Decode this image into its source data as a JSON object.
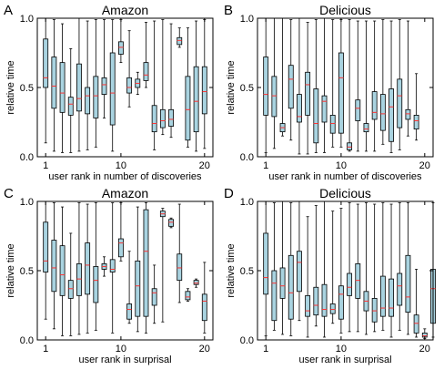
{
  "figure": {
    "style": {
      "box_fill": "#a9d3e0",
      "box_stroke": "#000000",
      "median_color": "#ff3333",
      "whisker_color": "#000000"
    }
  },
  "chart_data": [
    {
      "type": "box",
      "panel_letter": "A",
      "title": "Amazon",
      "xlabel": "user rank in number of discoveries",
      "ylabel": "relative time",
      "xlim": [
        0,
        21
      ],
      "ylim": [
        0.0,
        1.0
      ],
      "xticks": [
        "1",
        "10",
        "20"
      ],
      "xtick_positions": [
        1,
        10,
        20
      ],
      "yticks": [
        "0.0",
        "0.5",
        "1.0"
      ],
      "boxes": [
        {
          "x": 1,
          "min": 0.1,
          "q1": 0.5,
          "median": 0.57,
          "q3": 0.85,
          "max": 1.0
        },
        {
          "x": 2,
          "min": 0.04,
          "q1": 0.35,
          "median": 0.51,
          "q3": 0.72,
          "max": 0.99
        },
        {
          "x": 3,
          "min": 0.03,
          "q1": 0.32,
          "median": 0.46,
          "q3": 0.68,
          "max": 0.96
        },
        {
          "x": 4,
          "min": 0.03,
          "q1": 0.3,
          "median": 0.38,
          "q3": 0.43,
          "max": 0.78
        },
        {
          "x": 5,
          "min": 0.04,
          "q1": 0.33,
          "median": 0.42,
          "q3": 0.67,
          "max": 1.0
        },
        {
          "x": 6,
          "min": 0.05,
          "q1": 0.31,
          "median": 0.44,
          "q3": 0.5,
          "max": 0.98
        },
        {
          "x": 7,
          "min": 0.07,
          "q1": 0.28,
          "median": 0.44,
          "q3": 0.58,
          "max": 0.99
        },
        {
          "x": 8,
          "min": 0.28,
          "q1": 0.45,
          "median": 0.52,
          "q3": 0.57,
          "max": 0.99
        },
        {
          "x": 9,
          "min": 0.04,
          "q1": 0.23,
          "median": 0.46,
          "q3": 0.75,
          "max": 0.99
        },
        {
          "x": 10,
          "min": 0.68,
          "q1": 0.74,
          "median": 0.79,
          "q3": 0.83,
          "max": 0.99
        },
        {
          "x": 11,
          "min": 0.36,
          "q1": 0.46,
          "median": 0.5,
          "q3": 0.57,
          "max": 0.91
        },
        {
          "x": 12,
          "min": 0.45,
          "q1": 0.5,
          "median": 0.53,
          "q3": 0.56,
          "max": 0.61
        },
        {
          "x": 13,
          "min": 0.5,
          "q1": 0.55,
          "median": 0.59,
          "q3": 0.68,
          "max": 0.97
        },
        {
          "x": 14,
          "min": 0.05,
          "q1": 0.18,
          "median": 0.24,
          "q3": 0.37,
          "max": 0.98
        },
        {
          "x": 15,
          "min": 0.16,
          "q1": 0.21,
          "median": 0.26,
          "q3": 0.34,
          "max": 0.99
        },
        {
          "x": 16,
          "min": 0.14,
          "q1": 0.22,
          "median": 0.27,
          "q3": 0.34,
          "max": 0.96
        },
        {
          "x": 17,
          "min": 0.79,
          "q1": 0.81,
          "median": 0.84,
          "q3": 0.86,
          "max": 0.93
        },
        {
          "x": 18,
          "min": 0.07,
          "q1": 0.12,
          "median": 0.34,
          "q3": 0.58,
          "max": 0.93
        },
        {
          "x": 19,
          "min": 0.04,
          "q1": 0.18,
          "median": 0.4,
          "q3": 0.65,
          "max": 0.98
        },
        {
          "x": 20,
          "min": 0.06,
          "q1": 0.31,
          "median": 0.47,
          "q3": 0.65,
          "max": 0.99
        }
      ]
    },
    {
      "type": "box",
      "panel_letter": "B",
      "title": "Delicious",
      "xlabel": "user rank in number of discoveries",
      "ylabel": "relative time",
      "xlim": [
        0,
        21
      ],
      "ylim": [
        0.0,
        1.0
      ],
      "xticks": [
        "1",
        "10",
        "20"
      ],
      "xtick_positions": [
        1,
        10,
        20
      ],
      "yticks": [
        "0.0",
        "0.5",
        "1.0"
      ],
      "boxes": [
        {
          "x": 1,
          "min": 0.03,
          "q1": 0.3,
          "median": 0.45,
          "q3": 0.72,
          "max": 1.0
        },
        {
          "x": 2,
          "min": 0.06,
          "q1": 0.29,
          "median": 0.44,
          "q3": 0.58,
          "max": 1.0
        },
        {
          "x": 3,
          "min": 0.15,
          "q1": 0.18,
          "median": 0.21,
          "q3": 0.24,
          "max": 1.0
        },
        {
          "x": 4,
          "min": 0.12,
          "q1": 0.35,
          "median": 0.56,
          "q3": 0.66,
          "max": 0.99
        },
        {
          "x": 5,
          "min": 0.02,
          "q1": 0.25,
          "median": 0.29,
          "q3": 0.45,
          "max": 1.0
        },
        {
          "x": 6,
          "min": 0.02,
          "q1": 0.3,
          "median": 0.52,
          "q3": 0.61,
          "max": 0.97
        },
        {
          "x": 7,
          "min": 0.03,
          "q1": 0.1,
          "median": 0.24,
          "q3": 0.49,
          "max": 0.99
        },
        {
          "x": 8,
          "min": 0.03,
          "q1": 0.25,
          "median": 0.4,
          "q3": 0.44,
          "max": 1.0
        },
        {
          "x": 9,
          "min": 0.07,
          "q1": 0.17,
          "median": 0.24,
          "q3": 0.3,
          "max": 0.99
        },
        {
          "x": 10,
          "min": 0.07,
          "q1": 0.17,
          "median": 0.57,
          "q3": 0.75,
          "max": 0.99
        },
        {
          "x": 11,
          "min": 0.04,
          "q1": 0.05,
          "median": 0.07,
          "q3": 0.1,
          "max": 0.99
        },
        {
          "x": 12,
          "min": 0.04,
          "q1": 0.26,
          "median": 0.35,
          "q3": 0.41,
          "max": 0.98
        },
        {
          "x": 13,
          "min": 0.04,
          "q1": 0.18,
          "median": 0.2,
          "q3": 0.24,
          "max": 0.98
        },
        {
          "x": 14,
          "min": 0.04,
          "q1": 0.27,
          "median": 0.32,
          "q3": 0.47,
          "max": 0.98
        },
        {
          "x": 15,
          "min": 0.09,
          "q1": 0.19,
          "median": 0.31,
          "q3": 0.45,
          "max": 0.99
        },
        {
          "x": 16,
          "min": 0.03,
          "q1": 0.11,
          "median": 0.36,
          "q3": 0.49,
          "max": 0.98
        },
        {
          "x": 17,
          "min": 0.05,
          "q1": 0.21,
          "median": 0.44,
          "q3": 0.56,
          "max": 0.99
        },
        {
          "x": 18,
          "min": 0.15,
          "q1": 0.27,
          "median": 0.31,
          "q3": 0.34,
          "max": 0.98
        },
        {
          "x": 19,
          "min": 0.12,
          "q1": 0.2,
          "median": 0.26,
          "q3": 0.3,
          "max": 0.6
        }
      ]
    },
    {
      "type": "box",
      "panel_letter": "C",
      "title": "Amazon",
      "xlabel": "user rank in surprisal",
      "ylabel": "relative time",
      "xlim": [
        0,
        21
      ],
      "ylim": [
        0.0,
        1.0
      ],
      "xticks": [
        "1",
        "10",
        "20"
      ],
      "xtick_positions": [
        1,
        10,
        20
      ],
      "yticks": [
        "0.0",
        "0.5",
        "1.0"
      ],
      "boxes": [
        {
          "x": 1,
          "min": 0.15,
          "q1": 0.49,
          "median": 0.57,
          "q3": 0.85,
          "max": 1.0
        },
        {
          "x": 2,
          "min": 0.08,
          "q1": 0.35,
          "median": 0.52,
          "q3": 0.72,
          "max": 0.99
        },
        {
          "x": 3,
          "min": 0.03,
          "q1": 0.32,
          "median": 0.47,
          "q3": 0.68,
          "max": 0.96
        },
        {
          "x": 4,
          "min": 0.03,
          "q1": 0.3,
          "median": 0.37,
          "q3": 0.43,
          "max": 0.77
        },
        {
          "x": 5,
          "min": 0.04,
          "q1": 0.32,
          "median": 0.44,
          "q3": 0.55,
          "max": 0.99
        },
        {
          "x": 6,
          "min": 0.05,
          "q1": 0.33,
          "median": 0.54,
          "q3": 0.7,
          "max": 0.98
        },
        {
          "x": 7,
          "min": 0.07,
          "q1": 0.27,
          "median": 0.43,
          "q3": 0.53,
          "max": 0.99
        },
        {
          "x": 8,
          "min": 0.46,
          "q1": 0.51,
          "median": 0.53,
          "q3": 0.55,
          "max": 0.6
        },
        {
          "x": 9,
          "min": 0.05,
          "q1": 0.49,
          "median": 0.51,
          "q3": 0.58,
          "max": 0.99
        },
        {
          "x": 10,
          "min": 0.57,
          "q1": 0.6,
          "median": 0.7,
          "q3": 0.73,
          "max": 0.99
        },
        {
          "x": 11,
          "min": 0.12,
          "q1": 0.15,
          "median": 0.22,
          "q3": 0.26,
          "max": 0.64
        },
        {
          "x": 12,
          "min": 0.06,
          "q1": 0.17,
          "median": 0.39,
          "q3": 0.57,
          "max": 0.96
        },
        {
          "x": 13,
          "min": 0.05,
          "q1": 0.17,
          "median": 0.64,
          "q3": 0.94,
          "max": 0.99
        },
        {
          "x": 14,
          "min": 0.12,
          "q1": 0.25,
          "median": 0.34,
          "q3": 0.37,
          "max": 0.54
        },
        {
          "x": 15,
          "min": 0.13,
          "q1": 0.89,
          "median": 0.91,
          "q3": 0.93,
          "max": 0.95
        },
        {
          "x": 16,
          "min": 0.81,
          "q1": 0.82,
          "median": 0.85,
          "q3": 0.87,
          "max": 0.88
        },
        {
          "x": 17,
          "min": 0.27,
          "q1": 0.43,
          "median": 0.52,
          "q3": 0.62,
          "max": 0.98
        },
        {
          "x": 18,
          "min": 0.28,
          "q1": 0.29,
          "median": 0.31,
          "q3": 0.35,
          "max": 0.37
        },
        {
          "x": 19,
          "min": 0.38,
          "q1": 0.4,
          "median": 0.41,
          "q3": 0.43,
          "max": 0.44
        },
        {
          "x": 20,
          "min": 0.05,
          "q1": 0.14,
          "median": 0.28,
          "q3": 0.33,
          "max": 0.56
        }
      ]
    },
    {
      "type": "box",
      "panel_letter": "D",
      "title": "Delicious",
      "xlabel": "user rank in surprisal",
      "ylabel": "relative time",
      "xlim": [
        0,
        21
      ],
      "ylim": [
        0.0,
        1.0
      ],
      "xticks": [
        "1",
        "10",
        "20"
      ],
      "xtick_positions": [
        1,
        10,
        20
      ],
      "yticks": [
        "0.0",
        "0.5",
        "1.0"
      ],
      "boxes": [
        {
          "x": 1,
          "min": 0.03,
          "q1": 0.33,
          "median": 0.45,
          "q3": 0.77,
          "max": 1.0
        },
        {
          "x": 2,
          "min": 0.07,
          "q1": 0.14,
          "median": 0.41,
          "q3": 0.5,
          "max": 0.99
        },
        {
          "x": 3,
          "min": 0.04,
          "q1": 0.3,
          "median": 0.39,
          "q3": 0.52,
          "max": 1.0
        },
        {
          "x": 4,
          "min": 0.03,
          "q1": 0.15,
          "median": 0.34,
          "q3": 0.61,
          "max": 0.99
        },
        {
          "x": 5,
          "min": 0.14,
          "q1": 0.35,
          "median": 0.56,
          "q3": 0.64,
          "max": 1.0
        },
        {
          "x": 6,
          "min": 0.02,
          "q1": 0.17,
          "median": 0.21,
          "q3": 0.32,
          "max": 0.89
        },
        {
          "x": 7,
          "min": 0.1,
          "q1": 0.18,
          "median": 0.25,
          "q3": 0.38,
          "max": 0.97
        },
        {
          "x": 8,
          "min": 0.02,
          "q1": 0.17,
          "median": 0.22,
          "q3": 0.4,
          "max": 1.0
        },
        {
          "x": 9,
          "min": 0.12,
          "q1": 0.19,
          "median": 0.22,
          "q3": 0.26,
          "max": 0.93
        },
        {
          "x": 10,
          "min": 0.05,
          "q1": 0.15,
          "median": 0.33,
          "q3": 0.39,
          "max": 0.95
        },
        {
          "x": 11,
          "min": 0.06,
          "q1": 0.32,
          "median": 0.38,
          "q3": 0.48,
          "max": 0.99
        },
        {
          "x": 12,
          "min": 0.06,
          "q1": 0.3,
          "median": 0.43,
          "q3": 0.55,
          "max": 0.98
        },
        {
          "x": 13,
          "min": 0.04,
          "q1": 0.21,
          "median": 0.28,
          "q3": 0.35,
          "max": 0.99
        },
        {
          "x": 14,
          "min": 0.06,
          "q1": 0.13,
          "median": 0.21,
          "q3": 0.3,
          "max": 0.98
        },
        {
          "x": 15,
          "min": 0.07,
          "q1": 0.17,
          "median": 0.23,
          "q3": 0.46,
          "max": 0.99
        },
        {
          "x": 16,
          "min": 0.02,
          "q1": 0.17,
          "median": 0.23,
          "q3": 0.44,
          "max": 0.98
        },
        {
          "x": 17,
          "min": 0.07,
          "q1": 0.25,
          "median": 0.39,
          "q3": 0.48,
          "max": 0.99
        },
        {
          "x": 18,
          "min": 0.04,
          "q1": 0.2,
          "median": 0.31,
          "q3": 0.61,
          "max": 0.99
        },
        {
          "x": 19,
          "min": 0.02,
          "q1": 0.05,
          "median": 0.12,
          "q3": 0.18,
          "max": 0.51
        },
        {
          "x": 20,
          "min": 0.01,
          "q1": 0.02,
          "median": 0.03,
          "q3": 0.05,
          "max": 0.08
        },
        {
          "x": 21,
          "min": 0.02,
          "q1": 0.12,
          "median": 0.37,
          "q3": 0.51,
          "max": 0.99
        }
      ]
    }
  ]
}
